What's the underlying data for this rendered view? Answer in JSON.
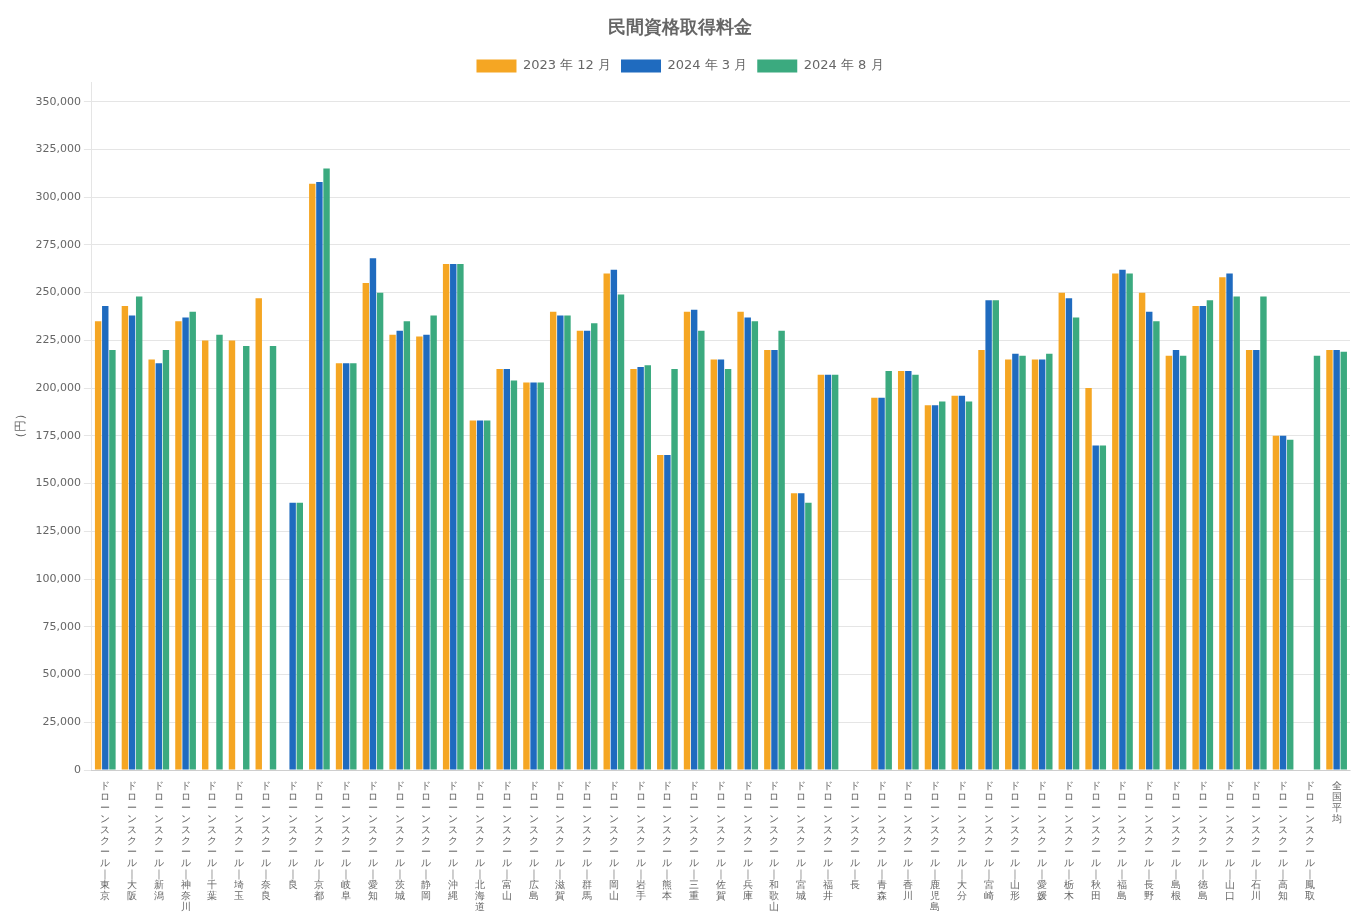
{
  "chart_data": {
    "type": "bar",
    "title": "民間資格取得料金",
    "ylabel": "（円）",
    "categories": [
      "ドローンスクール｜東京",
      "ドローンスクール｜大阪",
      "ドローンスクール｜新潟",
      "ドローンスクール｜神奈川",
      "ドローンスクール｜千葉",
      "ドローンスクール｜埼玉",
      "ドローンスクール｜奈良",
      "ドローンスクール｜良",
      "ドローンスクール｜京都",
      "ドローンスクール｜岐阜",
      "ドローンスクール｜愛知",
      "ドローンスクール｜茨城",
      "ドローンスクール｜静岡",
      "ドローンスクール｜沖縄",
      "ドローンスクール｜北海道",
      "ドローンスクール｜富山",
      "ドローンスクール｜広島",
      "ドローンスクール｜滋賀",
      "ドローンスクール｜群馬",
      "ドローンスクール｜岡山",
      "ドローンスクール｜岩手",
      "ドローンスクール｜熊本",
      "ドローンスクール｜三重",
      "ドローンスクール｜佐賀",
      "ドローンスクール｜兵庫",
      "ドローンスクール｜和歌山",
      "ドローンスクール｜宮城",
      "ドローンスクール｜福井",
      "ドローンスクール｜長",
      "ドローンスクール｜青森",
      "ドローンスクール｜香川",
      "ドローンスクール｜鹿児島",
      "ドローンスクール｜大分",
      "ドローンスクール｜宮崎",
      "ドローンスクール｜山形",
      "ドローンスクール｜愛媛",
      "ドローンスクール｜栃木",
      "ドローンスクール｜秋田",
      "ドローンスクール｜福島",
      "ドローンスクール｜長野",
      "ドローンスクール｜島根",
      "ドローンスクール｜徳島",
      "ドローンスクール｜山口",
      "ドローンスクール｜石川",
      "ドローンスクール｜高知",
      "ドローンスクール｜鳳取",
      "全国平均"
    ],
    "series": [
      {
        "name": "2023 年 12 月",
        "color": "#F5A623",
        "values": [
          235000,
          243000,
          215000,
          235000,
          225000,
          225000,
          247000,
          null,
          307000,
          213000,
          255000,
          228000,
          227000,
          265000,
          183000,
          210000,
          203000,
          240000,
          230000,
          260000,
          210000,
          165000,
          240000,
          215000,
          240000,
          220000,
          145000,
          207000,
          null,
          195000,
          209000,
          191000,
          196000,
          220000,
          215000,
          215000,
          250000,
          200000,
          260000,
          250000,
          217000,
          243000,
          258000,
          220000,
          175000,
          null,
          220000
        ]
      },
      {
        "name": "2024 年 3 月",
        "color": "#1F6BBF",
        "values": [
          243000,
          238000,
          213000,
          237000,
          null,
          null,
          null,
          140000,
          308000,
          213000,
          268000,
          230000,
          228000,
          265000,
          183000,
          210000,
          203000,
          238000,
          230000,
          262000,
          211000,
          165000,
          241000,
          215000,
          237000,
          220000,
          145000,
          207000,
          null,
          195000,
          209000,
          191000,
          196000,
          246000,
          218000,
          215000,
          247000,
          170000,
          262000,
          240000,
          220000,
          243000,
          260000,
          220000,
          175000,
          null,
          220000
        ]
      },
      {
        "name": "2024 年 8 月",
        "color": "#3BAA7F",
        "values": [
          220000,
          248000,
          220000,
          240000,
          228000,
          222000,
          222000,
          140000,
          315000,
          213000,
          250000,
          235000,
          238000,
          265000,
          183000,
          204000,
          203000,
          238000,
          234000,
          249000,
          212000,
          210000,
          230000,
          210000,
          235000,
          230000,
          140000,
          207000,
          null,
          209000,
          207000,
          193000,
          193000,
          246000,
          217000,
          218000,
          237000,
          170000,
          260000,
          235000,
          217000,
          246000,
          248000,
          248000,
          173000,
          217000,
          219000
        ]
      }
    ],
    "ylim": [
      0,
      360000
    ],
    "yticks": [
      0,
      {
        "value": 25000,
        "label": "25,000"
      },
      {
        "value": 50000,
        "label": "50,000"
      },
      {
        "value": 75000,
        "label": "75,000"
      },
      {
        "value": 100000,
        "label": "100,000"
      },
      {
        "value": 125000,
        "label": "125,000"
      },
      {
        "value": 150000,
        "label": "150,000"
      },
      {
        "value": 175000,
        "label": "175,000"
      },
      {
        "value": 200000,
        "label": "200,000"
      },
      {
        "value": 225000,
        "label": "225,000"
      },
      {
        "value": 250000,
        "label": "250,000"
      },
      {
        "value": 275000,
        "label": "275,000"
      },
      {
        "value": 300000,
        "label": "300,000"
      },
      {
        "value": 325000,
        "label": "325,000"
      },
      {
        "value": 350000,
        "label": "350,000"
      }
    ],
    "grid": true,
    "legend": "top"
  }
}
